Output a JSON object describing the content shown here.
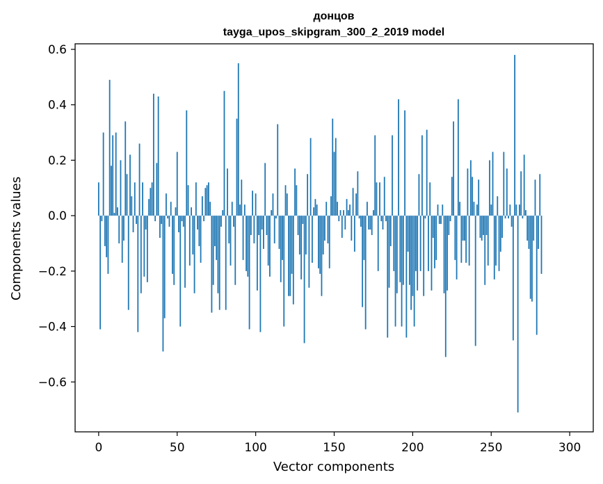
{
  "chart_data": {
    "type": "bar",
    "title": "донцов",
    "subtitle": "tayga_upos_skipgram_300_2_2019 model",
    "xlabel": "Vector components",
    "ylabel": "Components values",
    "xlim": [
      -15,
      315
    ],
    "ylim": [
      -0.78,
      0.62
    ],
    "xticks": [
      0,
      50,
      100,
      150,
      200,
      250,
      300
    ],
    "yticks": [
      -0.6,
      -0.4,
      -0.2,
      0.0,
      0.2,
      0.4,
      0.6
    ],
    "xtick_labels": [
      "0",
      "50",
      "100",
      "150",
      "200",
      "250",
      "300"
    ],
    "ytick_labels": [
      "−0.6",
      "−0.4",
      "−0.2",
      "0.0",
      "0.2",
      "0.4",
      "0.6"
    ],
    "bar_color": "#1f77b4",
    "grid": false,
    "values": [
      0.12,
      -0.41,
      -0.02,
      0.3,
      -0.11,
      -0.15,
      -0.21,
      0.49,
      0.18,
      0.29,
      0.01,
      0.3,
      0.03,
      -0.1,
      0.2,
      -0.17,
      -0.09,
      0.34,
      0.15,
      -0.34,
      0.22,
      0.07,
      -0.06,
      0.12,
      -0.03,
      -0.42,
      0.26,
      -0.28,
      0.12,
      -0.22,
      -0.05,
      -0.24,
      0.06,
      0.1,
      0.12,
      0.44,
      -0.02,
      0.19,
      0.43,
      -0.08,
      -0.03,
      -0.49,
      -0.37,
      0.08,
      -0.01,
      -0.04,
      0.05,
      -0.21,
      -0.25,
      0.03,
      0.23,
      -0.06,
      -0.4,
      -0.02,
      -0.04,
      -0.26,
      0.38,
      0.11,
      -0.18,
      0.03,
      -0.14,
      -0.28,
      0.12,
      -0.05,
      -0.11,
      -0.17,
      0.07,
      -0.02,
      0.1,
      0.11,
      0.12,
      0.05,
      -0.35,
      -0.25,
      -0.11,
      -0.16,
      -0.28,
      -0.34,
      -0.04,
      0.02,
      0.45,
      -0.34,
      0.17,
      -0.1,
      -0.18,
      0.05,
      -0.04,
      -0.25,
      0.35,
      0.55,
      0.04,
      0.13,
      -0.16,
      0.04,
      -0.2,
      -0.22,
      -0.41,
      -0.07,
      0.09,
      -0.1,
      0.08,
      -0.27,
      -0.07,
      -0.42,
      -0.05,
      -0.12,
      0.19,
      -0.07,
      -0.18,
      -0.22,
      0.02,
      0.08,
      -0.1,
      -0.01,
      0.33,
      -0.12,
      -0.24,
      -0.16,
      -0.4,
      0.11,
      0.08,
      -0.29,
      -0.29,
      -0.21,
      -0.32,
      0.17,
      0.11,
      -0.07,
      -0.14,
      -0.23,
      -0.03,
      -0.46,
      -0.14,
      0.15,
      -0.26,
      0.28,
      -0.17,
      0.03,
      0.06,
      0.04,
      -0.19,
      -0.21,
      -0.29,
      -0.14,
      -0.09,
      0.05,
      -0.1,
      -0.19,
      0.07,
      0.35,
      0.23,
      0.28,
      0.05,
      -0.02,
      0.02,
      -0.08,
      0.02,
      -0.05,
      0.06,
      0.02,
      0.04,
      -0.09,
      0.1,
      -0.13,
      0.08,
      0.16,
      -0.01,
      -0.04,
      -0.33,
      -0.16,
      -0.41,
      0.05,
      -0.05,
      -0.05,
      -0.07,
      0.02,
      0.29,
      0.12,
      -0.2,
      0.12,
      -0.02,
      -0.05,
      0.14,
      -0.02,
      -0.44,
      -0.26,
      -0.11,
      0.29,
      -0.2,
      -0.4,
      -0.28,
      0.42,
      -0.24,
      -0.4,
      -0.25,
      0.38,
      -0.44,
      -0.13,
      -0.25,
      -0.34,
      -0.29,
      -0.4,
      -0.2,
      -0.27,
      0.15,
      -0.2,
      0.29,
      -0.29,
      -0.01,
      0.31,
      -0.2,
      0.12,
      -0.27,
      -0.08,
      -0.19,
      -0.16,
      0.04,
      -0.03,
      -0.03,
      0.04,
      -0.28,
      -0.51,
      -0.27,
      -0.07,
      -0.02,
      0.14,
      0.34,
      -0.16,
      -0.23,
      0.42,
      0.05,
      -0.17,
      -0.09,
      -0.09,
      -0.17,
      0.17,
      -0.18,
      0.2,
      0.14,
      0.05,
      -0.47,
      0.04,
      0.13,
      -0.08,
      -0.09,
      -0.07,
      -0.25,
      -0.07,
      -0.18,
      0.2,
      0.04,
      0.23,
      -0.23,
      -0.18,
      0.07,
      -0.2,
      -0.13,
      -0.08,
      0.23,
      -0.01,
      0.17,
      -0.01,
      0.04,
      -0.04,
      -0.45,
      0.58,
      0.04,
      -0.71,
      0.04,
      0.16,
      -0.01,
      0.22,
      0.02,
      -0.09,
      -0.12,
      -0.3,
      -0.31,
      -0.09,
      0.13,
      -0.43,
      -0.12,
      0.15,
      -0.21
    ]
  }
}
